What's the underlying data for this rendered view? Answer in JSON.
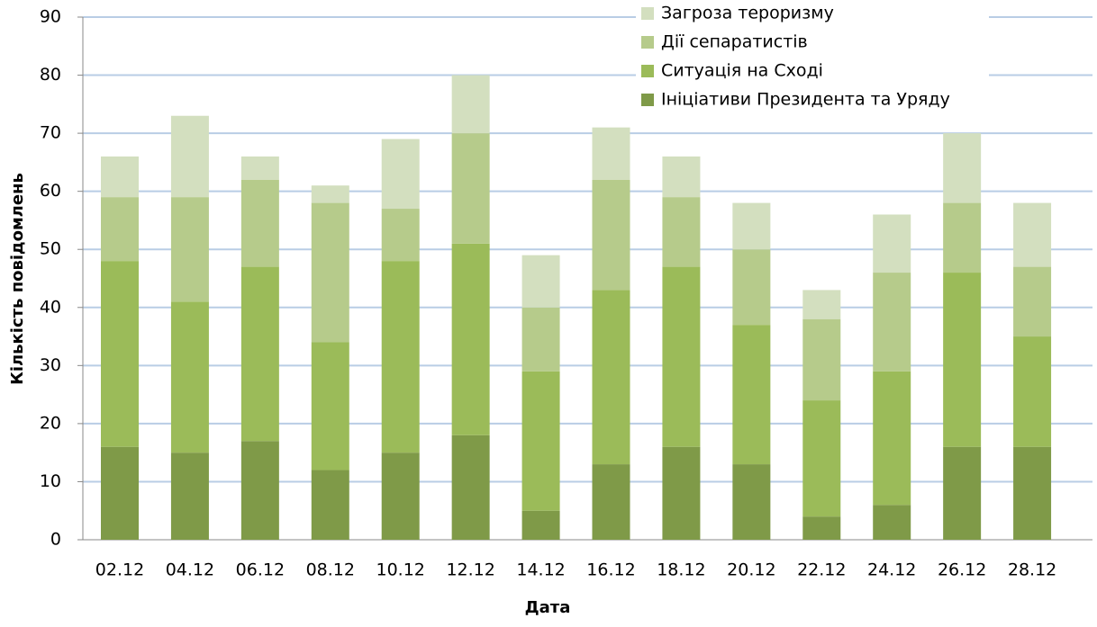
{
  "chart_data": {
    "type": "stacked_bar",
    "x_label": "Дата",
    "y_label": "Кількість повідомлень",
    "categories": [
      "02.12",
      "04.12",
      "06.12",
      "08.12",
      "10.12",
      "12.12",
      "14.12",
      "16.12",
      "18.12",
      "20.12",
      "22.12",
      "24.12",
      "26.12",
      "28.12"
    ],
    "series": [
      {
        "name": "Ініціативи Президента та Уряду",
        "color": "#7f9a48",
        "values": [
          16,
          15,
          17,
          12,
          15,
          18,
          5,
          13,
          16,
          13,
          4,
          6,
          16,
          16
        ]
      },
      {
        "name": "Ситуація на Сході",
        "color": "#9bbb59",
        "values": [
          32,
          26,
          30,
          22,
          33,
          33,
          24,
          30,
          31,
          24,
          20,
          23,
          30,
          19
        ]
      },
      {
        "name": "Дії сепаратистів",
        "color": "#b6cb8b",
        "values": [
          11,
          18,
          15,
          24,
          9,
          19,
          11,
          19,
          12,
          13,
          14,
          17,
          12,
          12
        ]
      },
      {
        "name": "Загроза тероризму",
        "color": "#d3dfbf",
        "values": [
          7,
          14,
          4,
          3,
          12,
          10,
          9,
          9,
          7,
          8,
          5,
          10,
          12,
          11
        ]
      }
    ],
    "ylim": [
      0,
      90
    ],
    "yticks": [
      0,
      10,
      20,
      30,
      40,
      50,
      60,
      70,
      80,
      90
    ],
    "grid": true,
    "legend": "top-right"
  }
}
